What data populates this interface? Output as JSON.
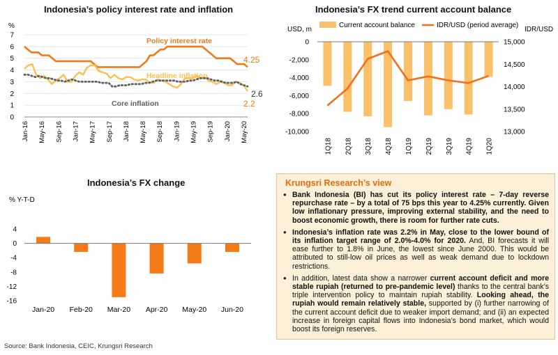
{
  "panels": {
    "rates_title": "Indonesia’s policy interest rate and inflation",
    "fx_cab_title": "Indonesia’s FX trend current account balance",
    "fx_change_title": "Indonesia’s FX change"
  },
  "view": {
    "heading": "Krungsri Research’s view",
    "bullets": [
      [
        {
          "t": "Bank Indonesia (BI) has cut its policy interest rate – 7-day reverse repurchase rate – by a total of 75 bps this year to 4.25% currently. Given low inflationary pressure, improving external stability, and the need to boost economic growth, there is room for further rate cuts.",
          "b": true
        }
      ],
      [
        {
          "t": "Indonesia’s inflation rate was 2.2% in May, close to the lower bound of its inflation target range of 2.0%-4.0% for 2020.",
          "b": true
        },
        {
          "t": " And, BI forecasts it will ease further to 1.8% in June, the lowest since June 2000. This would be attributed to still-low oil prices as well as weak demand due to lockdown restrictions.",
          "b": false
        }
      ],
      [
        {
          "t": "In addition, latest data show a narrower ",
          "b": false
        },
        {
          "t": "current account deficit and more stable rupiah (returned to pre-pandemic level)",
          "b": true
        },
        {
          "t": " thanks to the central bank’s triple intervention policy to maintain rupiah stability. ",
          "b": false
        },
        {
          "t": "Looking ahead, the rupiah would remain relatively stable,",
          "b": true
        },
        {
          "t": " supported by (i) further narrowing of the current account deficit due to weaker import demand; and (ii) an expected increase in foreign capital flows into Indonesia’s bond market, which would boost its foreign reserves.",
          "b": false
        }
      ]
    ]
  },
  "source": "Source: Bank Indonesia, CEIC, Krungsri Research",
  "colors": {
    "policy": "#f07a1a",
    "headline": "#fbbf4f",
    "core": "#606060",
    "bar": "#fbc16a",
    "fx_bar": "#f47b17",
    "idr": "#f07020"
  },
  "chart_data": [
    {
      "type": "line",
      "ylabel": "%",
      "ylim": [
        0,
        7
      ],
      "yticks": [
        0,
        1,
        2,
        3,
        4,
        5,
        6,
        7
      ],
      "x_tick_labels": [
        "Jan-16",
        "May-16",
        "Sep-16",
        "Jan-17",
        "May-17",
        "Sep-17",
        "Jan-18",
        "May-18",
        "Sep-18",
        "Jan-19",
        "May-19",
        "Sep-19",
        "Jan-20",
        "May-20"
      ],
      "x_tick_step_months": 4,
      "series": [
        {
          "name": "Policy interest rate",
          "end_label": "4.25",
          "values": [
            6.0,
            5.75,
            5.5,
            5.5,
            5.5,
            5.25,
            5.25,
            5.25,
            5.0,
            4.75,
            4.75,
            4.75,
            4.75,
            4.75,
            4.75,
            4.75,
            4.75,
            4.75,
            4.75,
            4.75,
            4.5,
            4.25,
            4.25,
            4.25,
            4.25,
            4.25,
            4.25,
            4.25,
            4.25,
            4.25,
            4.25,
            4.25,
            4.25,
            4.25,
            4.5,
            4.75,
            5.25,
            5.25,
            5.5,
            5.75,
            5.75,
            6.0,
            6.0,
            6.0,
            6.0,
            6.0,
            6.0,
            6.0,
            6.0,
            6.0,
            6.0,
            6.0,
            5.75,
            5.5,
            5.25,
            5.0,
            5.0,
            5.0,
            5.0,
            5.0,
            4.75,
            4.5,
            4.5,
            4.5,
            4.25
          ]
        },
        {
          "name": "Headline inflation",
          "end_label": "2.2",
          "values": [
            4.1,
            4.4,
            4.5,
            3.6,
            3.3,
            3.5,
            3.2,
            2.8,
            3.1,
            3.3,
            3.6,
            3.0,
            3.0,
            3.5,
            3.8,
            3.6,
            4.2,
            4.4,
            4.4,
            3.9,
            3.8,
            3.7,
            3.3,
            3.6,
            3.3,
            3.2,
            3.4,
            3.4,
            3.2,
            3.1,
            3.2,
            3.2,
            2.9,
            2.9,
            3.2,
            3.1,
            3.0,
            2.8,
            2.6,
            2.5,
            2.8,
            3.3,
            3.3,
            3.3,
            3.5,
            3.3,
            3.4,
            3.1,
            3.0,
            2.8,
            3.0,
            2.9,
            2.7,
            2.7,
            3.0,
            2.9,
            2.7,
            2.2
          ]
        },
        {
          "name": "Core inflation",
          "end_label": "2.6",
          "values": [
            3.6,
            3.6,
            3.5,
            3.4,
            3.5,
            3.4,
            3.3,
            3.3,
            3.2,
            3.1,
            3.1,
            3.0,
            3.1,
            3.2,
            3.1,
            3.0,
            3.0,
            3.0,
            3.0,
            3.0,
            3.0,
            2.9,
            2.9,
            2.9,
            2.6,
            2.6,
            2.7,
            2.7,
            2.7,
            2.8,
            2.8,
            2.8,
            2.8,
            2.9,
            2.9,
            3.0,
            3.1,
            3.1,
            3.1,
            3.1,
            3.1,
            3.1,
            3.0,
            3.0,
            3.0,
            3.1,
            3.1,
            3.2,
            3.3,
            3.3,
            3.3,
            3.2,
            3.1,
            3.1,
            3.0,
            2.9,
            2.9,
            2.9,
            3.0,
            2.8,
            2.7,
            2.6
          ]
        }
      ]
    },
    {
      "type": "bar",
      "categories": [
        "1Q18",
        "2Q18",
        "3Q18",
        "4Q18",
        "1Q19",
        "2Q19",
        "3Q19",
        "4Q19",
        "1Q20"
      ],
      "series": [
        {
          "name": "Current account balance",
          "axis": "left",
          "values": [
            -4900,
            -7800,
            -8300,
            -9500,
            -6600,
            -8200,
            -7500,
            -8100,
            -3900
          ]
        },
        {
          "name": "IDR/USD (period average)",
          "axis": "right",
          "type": "line",
          "values": [
            13580,
            13960,
            14620,
            14790,
            14140,
            14230,
            14140,
            14080,
            14240
          ]
        }
      ],
      "ylabel": "USD, m",
      "ylabel_right": "IDR/USD",
      "ylim": [
        -10000,
        0
      ],
      "yticks": [
        0,
        -2000,
        -4000,
        -6000,
        -8000,
        -10000
      ],
      "ylim_right": [
        13000,
        15000
      ],
      "yticks_right": [
        15000,
        14500,
        14000,
        13500,
        13000
      ],
      "legend": "top"
    },
    {
      "type": "bar",
      "categories": [
        "Jan-20",
        "Feb-20",
        "Mar-20",
        "Apr-20",
        "May-20",
        "Jun-20"
      ],
      "values": [
        1.8,
        -2.4,
        -15.0,
        -8.4,
        -5.6,
        -2.4
      ],
      "ylabel": "% Y-T-D",
      "ylim": [
        -16,
        4
      ],
      "yticks": [
        4,
        0,
        -4,
        -8,
        -12,
        -16
      ]
    }
  ]
}
